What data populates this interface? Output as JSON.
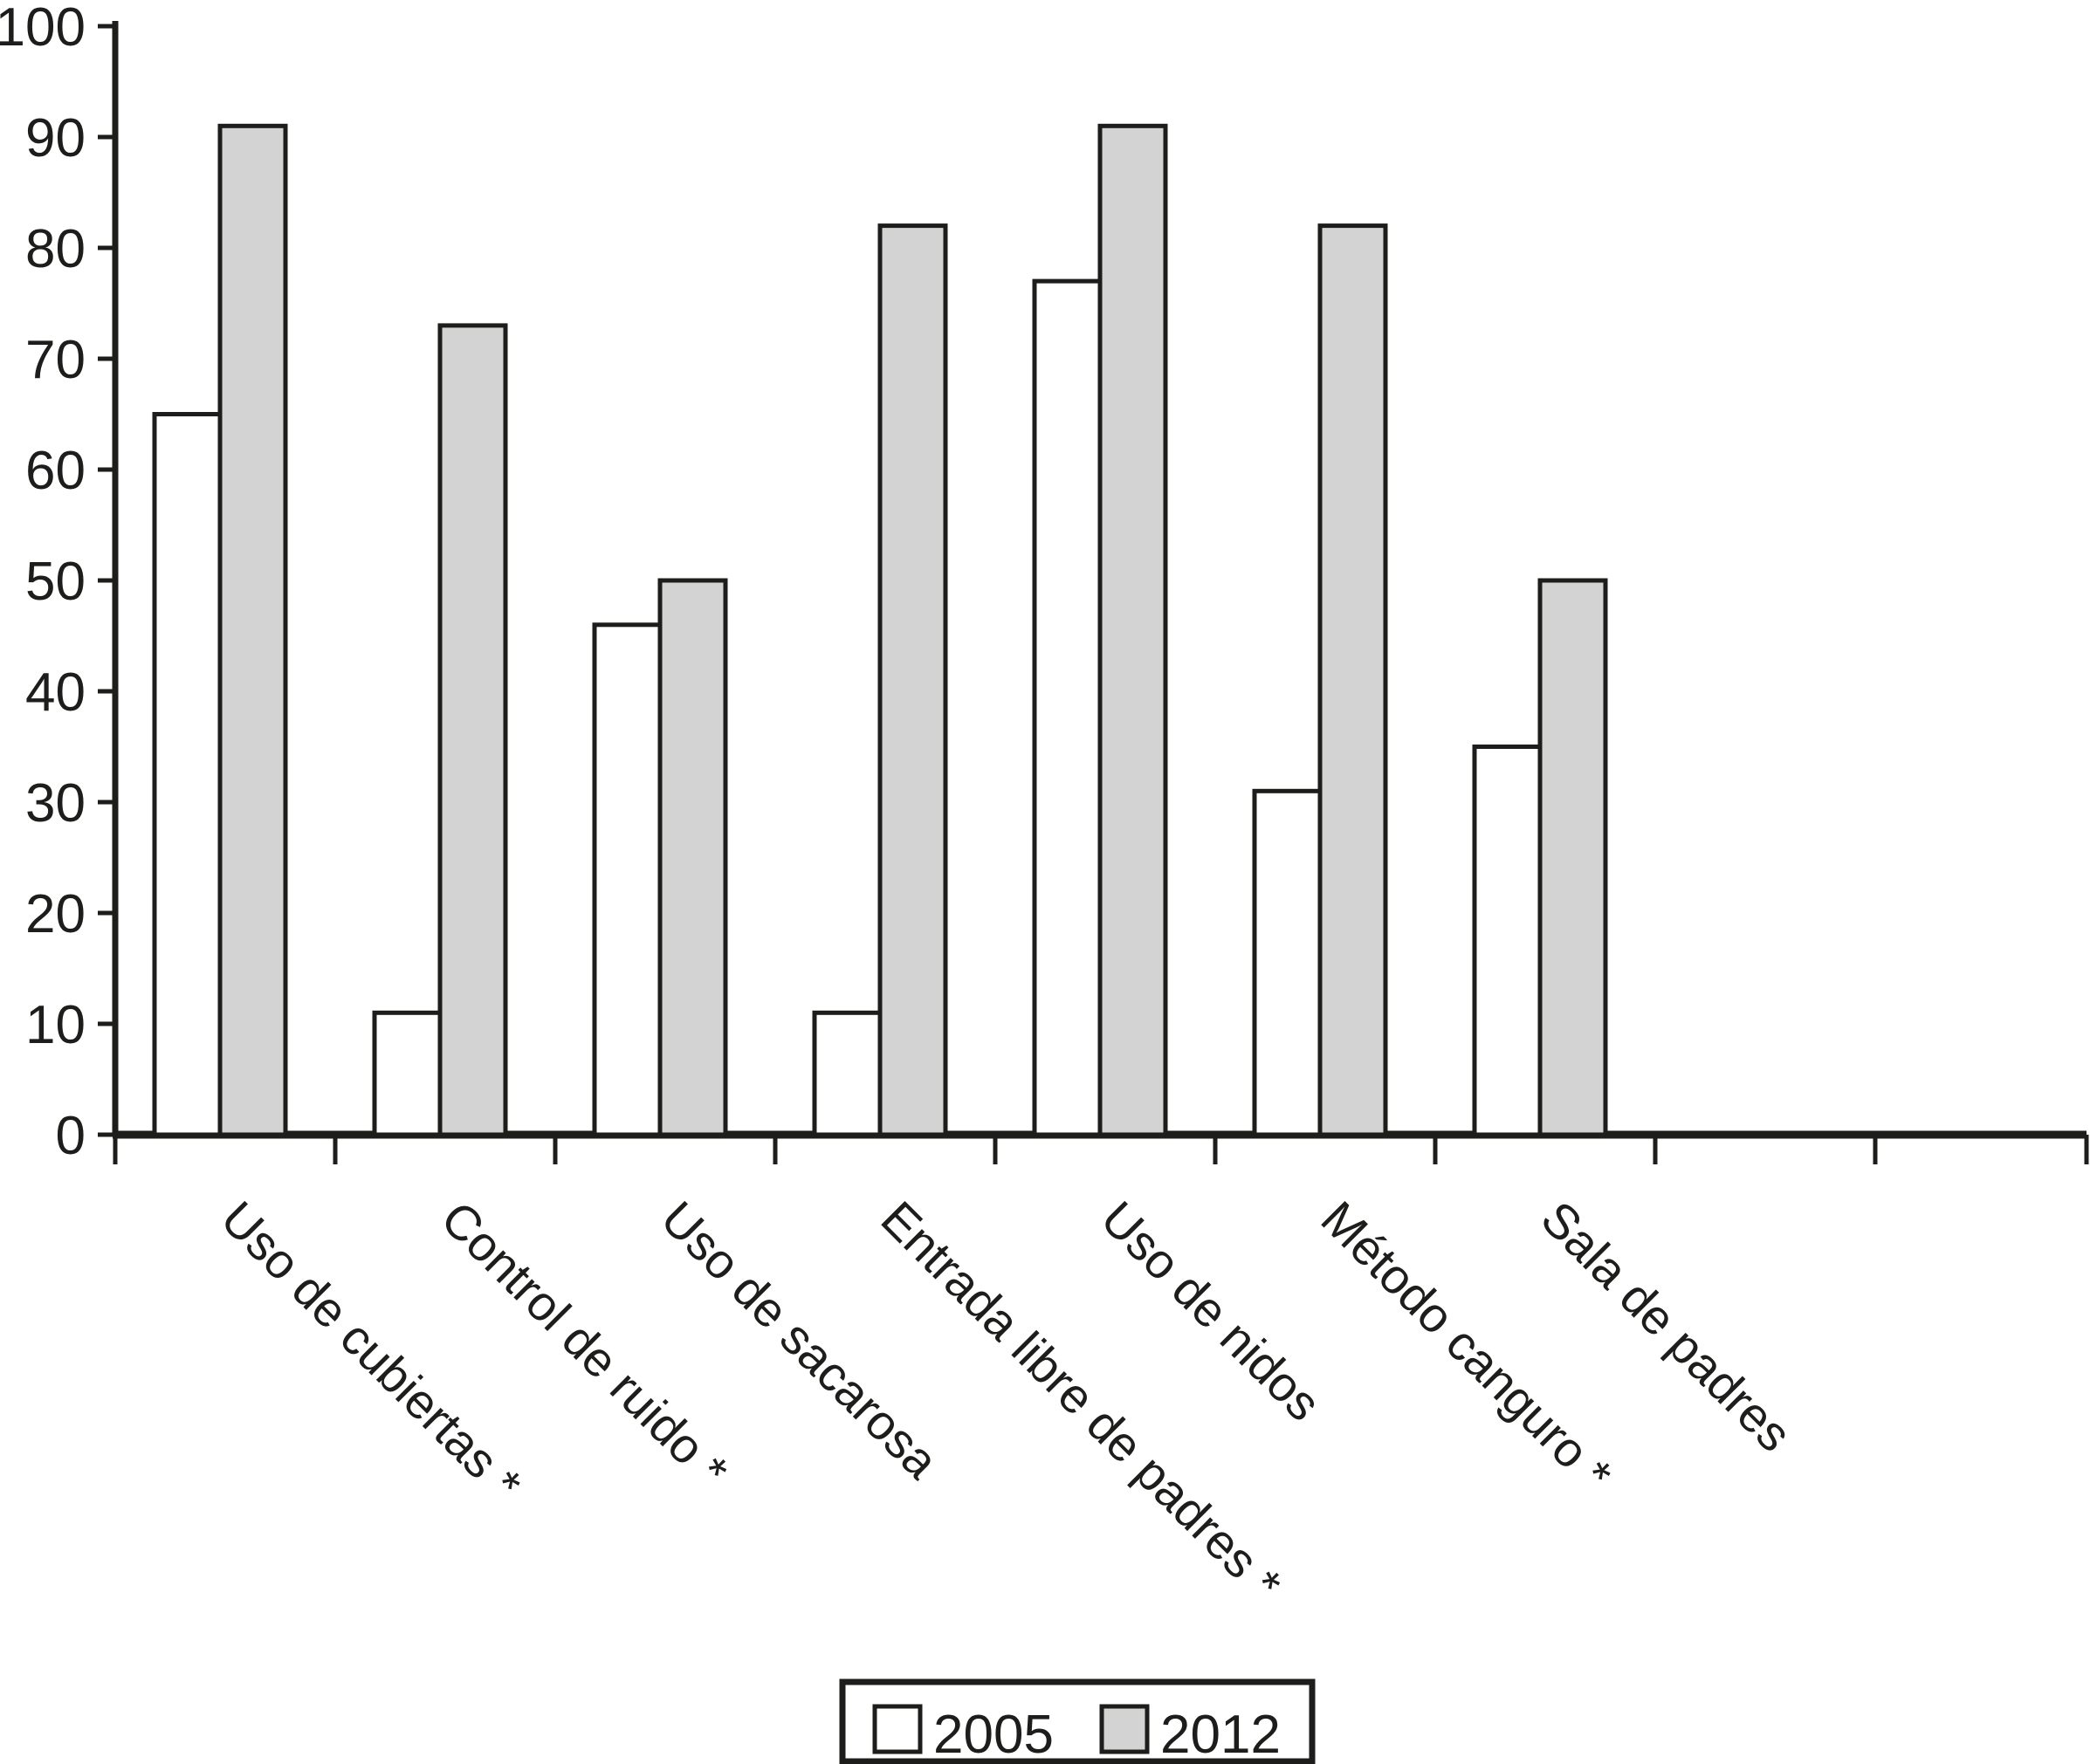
{
  "page": {
    "background": "#ffffff",
    "ink_color": "#1d1d1b"
  },
  "chart_data": {
    "type": "bar",
    "title": "",
    "xlabel": "",
    "ylabel": "",
    "categories": [
      "Uso de cubiertas *",
      "Control de ruido *",
      "Uso de sacarosa",
      "Entrada libre de padres *",
      "Uso de nidos",
      "Método canguro *",
      "Sala de padres"
    ],
    "series": [
      {
        "name": "2005",
        "fill": "#ffffff",
        "values": [
          65,
          11,
          46,
          11,
          77,
          31,
          35
        ]
      },
      {
        "name": "2012",
        "fill": "#d3d3d3",
        "values": [
          91,
          73,
          50,
          82,
          91,
          82,
          50
        ]
      }
    ],
    "ylim": [
      0,
      100
    ],
    "y_tick_step": 10,
    "y_tick_labels": [
      "0",
      "10",
      "20",
      "30",
      "40",
      "50",
      "60",
      "70",
      "80",
      "90",
      "100"
    ],
    "grid": false,
    "bar_outline_color": "#1d1d1b",
    "category_label_rotation_deg": 45,
    "x_axis_extends_beyond_last_category": true,
    "legend": {
      "position": "bottom-center",
      "border": true,
      "entries": [
        {
          "label": "2005",
          "fill": "#ffffff"
        },
        {
          "label": "2012",
          "fill": "#d3d3d3"
        }
      ]
    }
  }
}
